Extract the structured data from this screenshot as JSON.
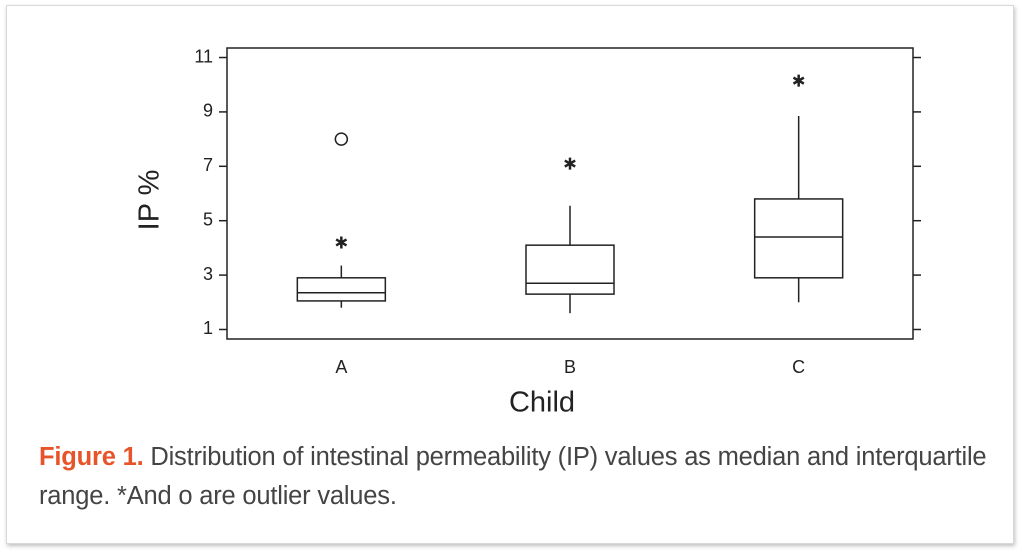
{
  "chart_data": {
    "type": "box",
    "x_label": "Child",
    "y_label": "IP %",
    "categories": [
      "A",
      "B",
      "C"
    ],
    "boxes": [
      {
        "whisker_low": 1.8,
        "q1": 2.05,
        "median": 2.35,
        "q3": 2.9,
        "whisker_high": 3.35,
        "outliers": [
          {
            "value": 4.2,
            "marker": "asterisk"
          },
          {
            "value": 8.0,
            "marker": "circle"
          }
        ]
      },
      {
        "whisker_low": 1.6,
        "q1": 2.3,
        "median": 2.7,
        "q3": 4.1,
        "whisker_high": 5.55,
        "outliers": [
          {
            "value": 7.1,
            "marker": "asterisk"
          }
        ]
      },
      {
        "whisker_low": 2.0,
        "q1": 2.9,
        "median": 4.4,
        "q3": 5.8,
        "whisker_high": 8.85,
        "outliers": [
          {
            "value": 10.15,
            "marker": "asterisk"
          }
        ]
      }
    ],
    "color": "#222222",
    "ylim": [
      0.65,
      11.35
    ],
    "yticks": [
      1,
      3,
      5,
      7,
      9,
      11
    ]
  },
  "caption": {
    "label": "Figure 1.",
    "text": "Distribution of intestinal permeability (IP) values as median and interquartile range. *And o are outlier values."
  }
}
